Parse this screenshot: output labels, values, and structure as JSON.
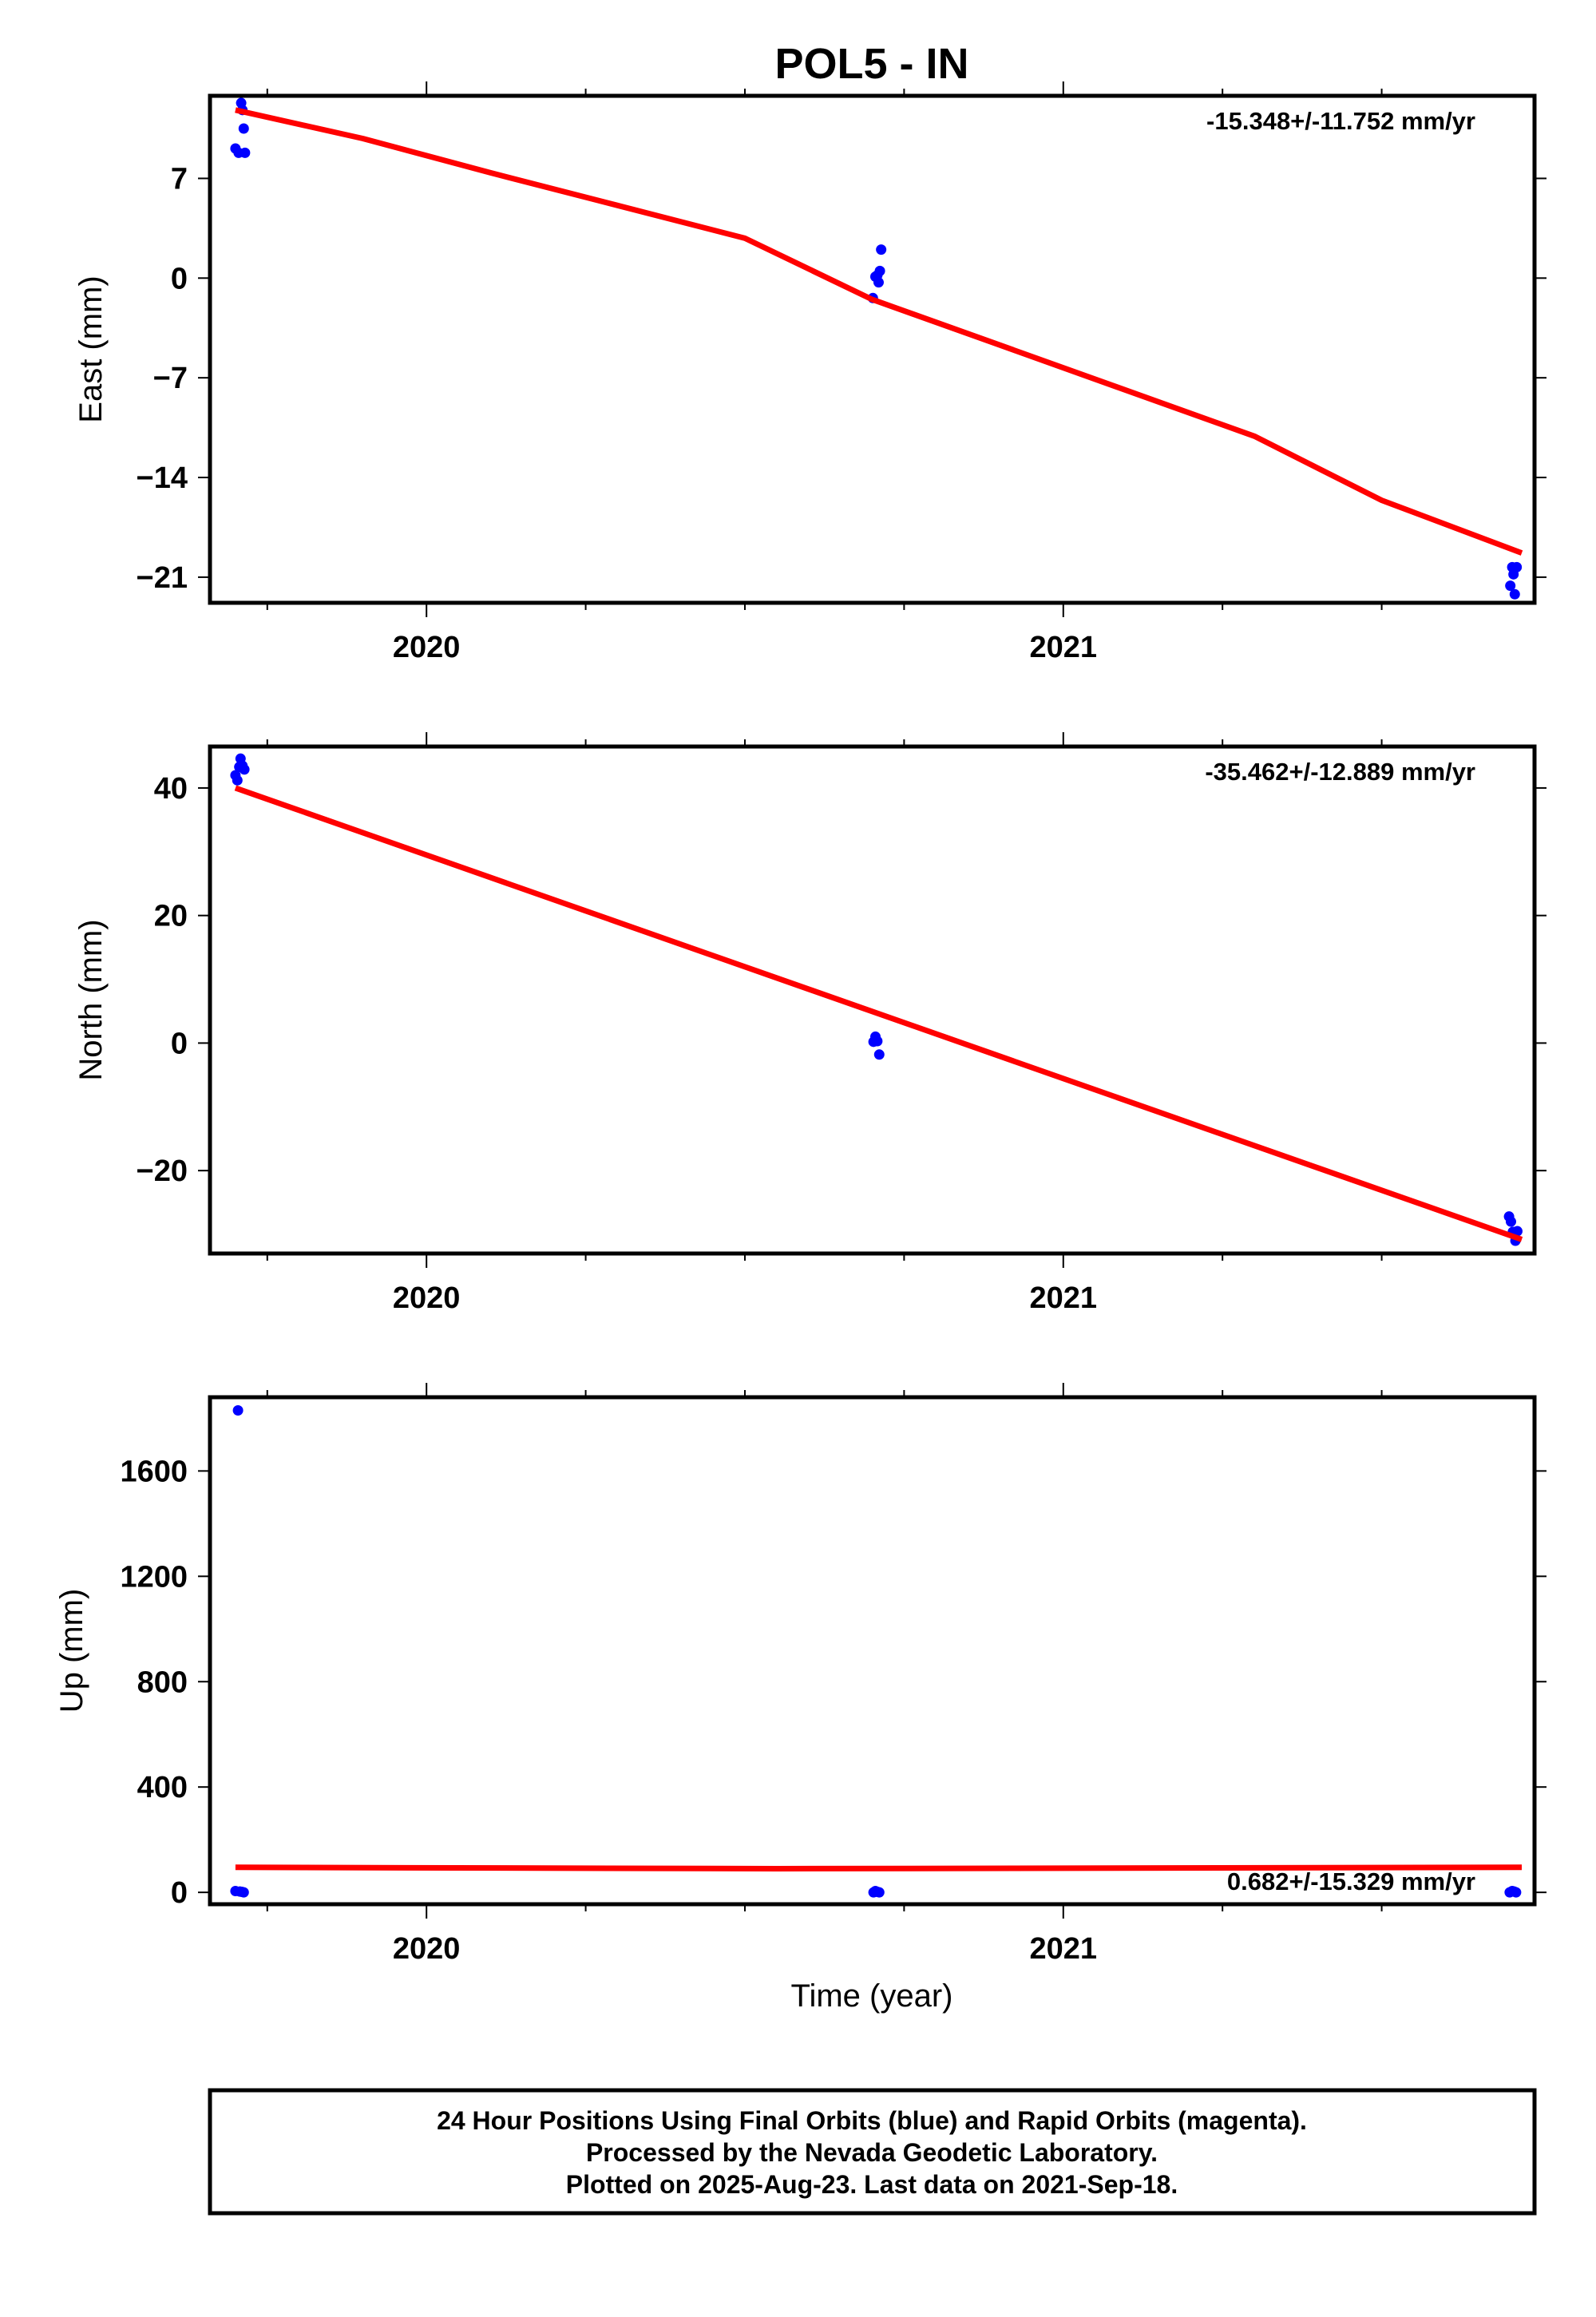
{
  "title": "POL5 - IN",
  "x_tick_labels": [
    "2020",
    "2021"
  ],
  "colors": {
    "final_orbits": "#0000ff",
    "rapid_orbits": "#ff00ff",
    "trend": "#ff0000",
    "axes": "#000000"
  },
  "chart_data": [
    {
      "type": "scatter",
      "ylabel": "East (mm)",
      "xlabel": "",
      "ylim": [
        -22.8,
        12.8
      ],
      "xlim": [
        2019.66,
        2021.74
      ],
      "y_ticks": [
        -21,
        -14,
        -7,
        0,
        7
      ],
      "y_tick_labels": [
        "−21",
        "−14",
        "−7",
        "0",
        "7"
      ],
      "x_ticks": [
        2020.0,
        2021.0
      ],
      "rate_annotation": "-15.348+/-11.752 mm/yr",
      "rate_position": "top-right",
      "series": [
        {
          "kind": "points",
          "x": [
            2019.7,
            2019.705,
            2019.709,
            2019.711,
            2019.713,
            2019.715,
            2020.701,
            2020.705,
            2020.708,
            2020.71,
            2020.712,
            2020.714,
            2021.702,
            2021.705,
            2021.707,
            2021.709,
            2021.712
          ],
          "y": [
            9.1,
            8.8,
            12.3,
            11.8,
            10.5,
            8.8,
            -1.4,
            0.1,
            0.2,
            -0.3,
            0.5,
            2.0,
            -21.6,
            -20.3,
            -20.8,
            -22.2,
            -20.3
          ]
        },
        {
          "kind": "trend",
          "x": [
            2019.7,
            2019.9,
            2020.1,
            2020.3,
            2020.5,
            2020.7,
            2020.9,
            2021.1,
            2021.3,
            2021.5,
            2021.72
          ],
          "y": [
            11.8,
            9.8,
            7.4,
            5.1,
            2.8,
            -1.5,
            -4.7,
            -7.9,
            -11.1,
            -15.6,
            -19.3
          ]
        }
      ]
    },
    {
      "type": "scatter",
      "ylabel": "North (mm)",
      "xlabel": "",
      "ylim": [
        -33,
        46.5
      ],
      "xlim": [
        2019.66,
        2021.74
      ],
      "y_ticks": [
        -20,
        0,
        20,
        40
      ],
      "y_tick_labels": [
        "−20",
        "0",
        "20",
        "40"
      ],
      "x_ticks": [
        2020.0,
        2021.0
      ],
      "rate_annotation": "-35.462+/-12.889 mm/yr",
      "rate_position": "top-right",
      "series": [
        {
          "kind": "points",
          "x": [
            2019.7,
            2019.703,
            2019.706,
            2019.708,
            2019.711,
            2019.714,
            2020.702,
            2020.705,
            2020.708,
            2020.711,
            2021.7,
            2021.703,
            2021.706,
            2021.708,
            2021.71,
            2021.713
          ],
          "y": [
            42.0,
            41.2,
            43.3,
            44.6,
            43.5,
            42.9,
            0.2,
            1.0,
            0.3,
            -1.8,
            -27.2,
            -28.0,
            -29.6,
            -29.8,
            -31.0,
            -29.5
          ]
        },
        {
          "kind": "trend",
          "x": [
            2019.7,
            2021.72
          ],
          "y": [
            40.0,
            -30.8
          ]
        }
      ]
    },
    {
      "type": "scatter",
      "ylabel": "Up (mm)",
      "xlabel": "Time (year)",
      "ylim": [
        -45,
        1880
      ],
      "xlim": [
        2019.66,
        2021.74
      ],
      "y_ticks": [
        0,
        400,
        800,
        1200,
        1600
      ],
      "y_tick_labels": [
        "0",
        "400",
        "800",
        "1200",
        "1600"
      ],
      "x_ticks": [
        2020.0,
        2021.0
      ],
      "rate_annotation": "0.682+/-15.329 mm/yr",
      "rate_position": "bottom-right",
      "series": [
        {
          "kind": "points",
          "x": [
            2019.7,
            2019.704,
            2019.707,
            2019.71,
            2019.713,
            2020.702,
            2020.705,
            2020.708,
            2020.711,
            2021.701,
            2021.705,
            2021.708,
            2021.711
          ],
          "y": [
            5,
            1830,
            3,
            2,
            0,
            0,
            5,
            2,
            0,
            0,
            5,
            3,
            0
          ]
        },
        {
          "kind": "trend",
          "x": [
            2019.7,
            2020.55,
            2021.72
          ],
          "y": [
            95,
            90,
            95
          ]
        }
      ]
    }
  ],
  "footer": {
    "line1": "24 Hour Positions Using Final Orbits (blue) and Rapid Orbits (magenta).",
    "line2": "Processed by the Nevada Geodetic Laboratory.",
    "line3": "Plotted on 2025-Aug-23. Last data on 2021-Sep-18."
  }
}
